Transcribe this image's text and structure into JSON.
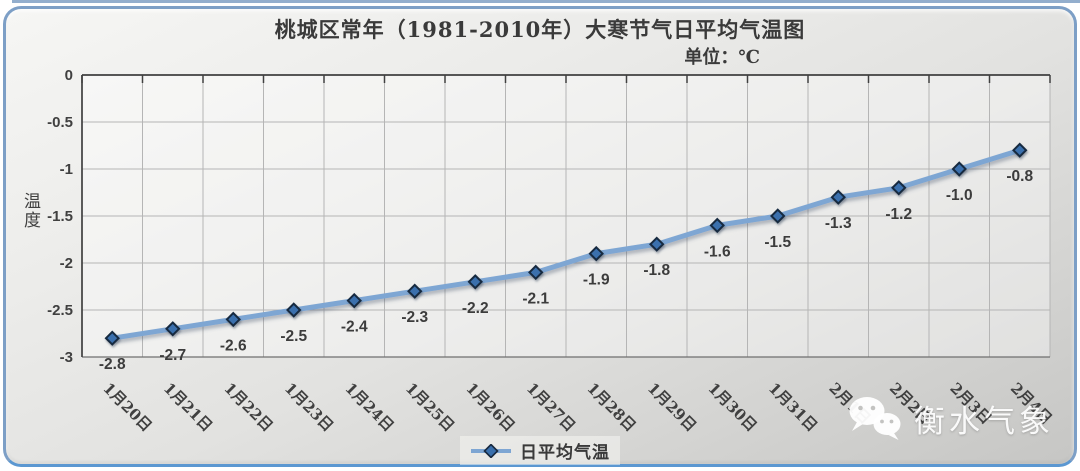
{
  "chart": {
    "title": "桃城区常年（1981-2010年）大寒节气日平均气温图",
    "unit_label": "单位：℃",
    "y_axis_title": "温度",
    "legend_label": "日平均气温"
  },
  "watermark": {
    "text": "衡水气象",
    "icon": "wechat-icon"
  },
  "chart_data": {
    "type": "line",
    "title": "桃城区常年（1981-2010年）大寒节气日平均气温图",
    "subtitle": "单位：℃",
    "xlabel": "",
    "ylabel": "温度",
    "unit": "℃",
    "categories": [
      "1月20日",
      "1月21日",
      "1月22日",
      "1月23日",
      "1月24日",
      "1月25日",
      "1月26日",
      "1月27日",
      "1月28日",
      "1月29日",
      "1月30日",
      "1月31日",
      "2月1日",
      "2月2日",
      "2月3日",
      "2月4日"
    ],
    "series": [
      {
        "name": "日平均气温",
        "values": [
          -2.8,
          -2.7,
          -2.6,
          -2.5,
          -2.4,
          -2.3,
          -2.2,
          -2.1,
          -1.9,
          -1.8,
          -1.6,
          -1.5,
          -1.3,
          -1.2,
          -1.0,
          -0.8
        ]
      }
    ],
    "ylim": [
      -3,
      0
    ],
    "ytick_values": [
      0,
      -0.5,
      -1,
      -1.5,
      -2,
      -2.5,
      -3
    ],
    "ytick_labels": [
      "0",
      "-0.5",
      "-1",
      "-1.5",
      "-2",
      "-2.5",
      "-3"
    ],
    "grid": true,
    "data_labels": "below points, one decimal",
    "legend_position": "bottom-center",
    "x_label_rotation_deg": 45,
    "colors": {
      "line": "#7ea6d3",
      "marker_fill": "#3a70ad",
      "marker_stroke": "#18293f",
      "axis": "#404040",
      "gridline": "#b5b5b5",
      "label_text": "#3c3c3c",
      "card_border": "#7d9fc6",
      "card_border_bottom": "#5b97d1"
    }
  }
}
